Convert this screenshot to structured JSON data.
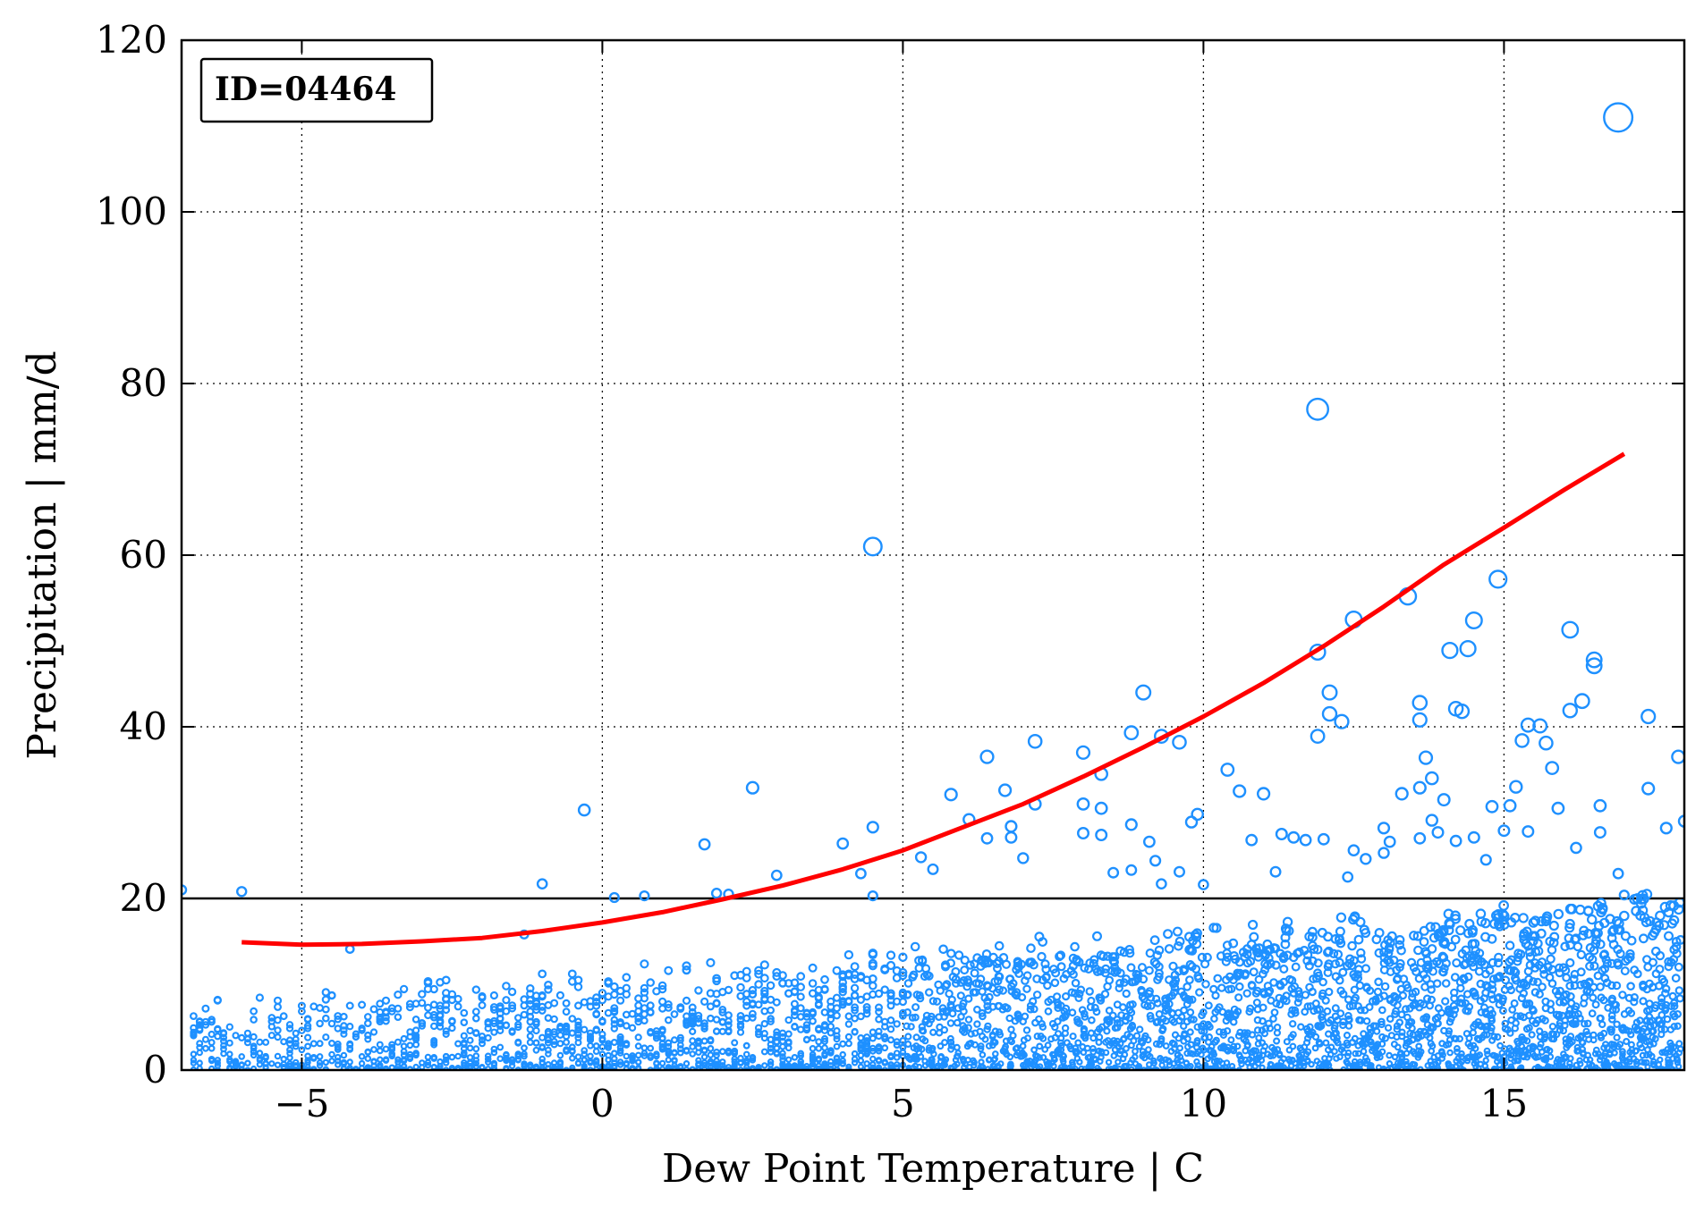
{
  "chart_data": {
    "type": "scatter",
    "xlabel": "Dew Point Temperature | C",
    "ylabel": "Precipitation | mm/d",
    "xlim": [
      -7,
      18
    ],
    "ylim": [
      0,
      120
    ],
    "xticks": [
      -5,
      0,
      5,
      10,
      15
    ],
    "xtick_labels": [
      "−5",
      "0",
      "5",
      "10",
      "15"
    ],
    "yticks": [
      0,
      20,
      40,
      60,
      80,
      100,
      120
    ],
    "ytick_labels": [
      "0",
      "20",
      "40",
      "60",
      "80",
      "100",
      "120"
    ],
    "grid": true,
    "annotation": "ID=04464",
    "threshold_line": 20,
    "colors": {
      "points": "#1e90ff",
      "fit": "#ff0000",
      "threshold": "#000000"
    },
    "fit_curve": {
      "name": "",
      "x": [
        -6,
        -5,
        -4,
        -3,
        -2,
        -1,
        0,
        1,
        2,
        3,
        4,
        5,
        6,
        7,
        8,
        9,
        10,
        11,
        12,
        13,
        14,
        15,
        16,
        17
      ],
      "y": [
        14.9,
        14.6,
        14.7,
        15.0,
        15.4,
        16.2,
        17.2,
        18.4,
        19.9,
        21.5,
        23.4,
        25.6,
        28.3,
        31.0,
        34.2,
        37.6,
        41.2,
        45.1,
        49.4,
        54.0,
        58.9,
        63.2,
        67.6,
        71.8
      ]
    },
    "series": [
      {
        "name": "",
        "points": [
          [
            -7.0,
            21.0
          ],
          [
            -6.0,
            20.8
          ],
          [
            -4.2,
            14.1
          ],
          [
            -1.3,
            15.8
          ],
          [
            -1.0,
            21.7
          ],
          [
            -0.3,
            30.3
          ],
          [
            0.2,
            20.1
          ],
          [
            0.7,
            20.3
          ],
          [
            1.7,
            26.3
          ],
          [
            1.9,
            20.6
          ],
          [
            2.1,
            20.5
          ],
          [
            2.5,
            32.9
          ],
          [
            2.9,
            22.7
          ],
          [
            4.0,
            26.4
          ],
          [
            4.3,
            22.9
          ],
          [
            4.5,
            61.0
          ],
          [
            4.5,
            28.3
          ],
          [
            4.5,
            20.3
          ],
          [
            5.3,
            24.8
          ],
          [
            5.5,
            23.4
          ],
          [
            5.8,
            32.1
          ],
          [
            6.1,
            29.2
          ],
          [
            6.4,
            36.5
          ],
          [
            6.4,
            27.0
          ],
          [
            6.7,
            32.6
          ],
          [
            6.8,
            27.1
          ],
          [
            6.8,
            28.4
          ],
          [
            7.0,
            24.7
          ],
          [
            7.2,
            38.3
          ],
          [
            7.2,
            31.0
          ],
          [
            8.0,
            37.0
          ],
          [
            8.0,
            31.0
          ],
          [
            8.0,
            27.6
          ],
          [
            8.3,
            34.5
          ],
          [
            8.3,
            30.5
          ],
          [
            8.3,
            27.4
          ],
          [
            8.5,
            23.0
          ],
          [
            8.8,
            39.3
          ],
          [
            8.8,
            28.6
          ],
          [
            8.8,
            23.3
          ],
          [
            9.0,
            44.0
          ],
          [
            9.1,
            26.6
          ],
          [
            9.2,
            24.4
          ],
          [
            9.3,
            38.9
          ],
          [
            9.3,
            21.7
          ],
          [
            9.6,
            38.2
          ],
          [
            9.6,
            23.1
          ],
          [
            9.8,
            28.9
          ],
          [
            9.9,
            29.8
          ],
          [
            10.0,
            21.6
          ],
          [
            10.4,
            35.0
          ],
          [
            10.6,
            32.5
          ],
          [
            10.8,
            26.8
          ],
          [
            11.0,
            32.2
          ],
          [
            11.2,
            23.1
          ],
          [
            11.3,
            27.5
          ],
          [
            11.5,
            27.1
          ],
          [
            11.7,
            26.8
          ],
          [
            11.9,
            77.0
          ],
          [
            11.9,
            48.7
          ],
          [
            11.9,
            38.9
          ],
          [
            12.0,
            26.9
          ],
          [
            12.1,
            44.0
          ],
          [
            12.1,
            41.5
          ],
          [
            12.3,
            40.6
          ],
          [
            12.4,
            22.5
          ],
          [
            12.5,
            52.5
          ],
          [
            12.5,
            25.6
          ],
          [
            12.7,
            24.6
          ],
          [
            13.0,
            28.2
          ],
          [
            13.0,
            25.3
          ],
          [
            13.1,
            26.6
          ],
          [
            13.3,
            32.2
          ],
          [
            13.4,
            55.2
          ],
          [
            13.6,
            42.8
          ],
          [
            13.6,
            40.8
          ],
          [
            13.6,
            32.9
          ],
          [
            13.6,
            27.0
          ],
          [
            13.7,
            36.4
          ],
          [
            13.8,
            34.0
          ],
          [
            13.8,
            29.1
          ],
          [
            13.9,
            27.7
          ],
          [
            14.0,
            31.5
          ],
          [
            14.1,
            48.9
          ],
          [
            14.2,
            42.1
          ],
          [
            14.2,
            26.7
          ],
          [
            14.3,
            41.8
          ],
          [
            14.4,
            49.1
          ],
          [
            14.5,
            52.4
          ],
          [
            14.5,
            27.1
          ],
          [
            14.7,
            24.5
          ],
          [
            14.8,
            30.7
          ],
          [
            14.9,
            57.2
          ],
          [
            15.0,
            27.9
          ],
          [
            15.1,
            30.8
          ],
          [
            15.2,
            33.0
          ],
          [
            15.3,
            38.4
          ],
          [
            15.4,
            40.2
          ],
          [
            15.4,
            27.8
          ],
          [
            15.6,
            40.1
          ],
          [
            15.7,
            38.1
          ],
          [
            15.8,
            35.2
          ],
          [
            15.9,
            30.5
          ],
          [
            16.1,
            51.3
          ],
          [
            16.1,
            41.9
          ],
          [
            16.2,
            25.9
          ],
          [
            16.3,
            43.0
          ],
          [
            16.5,
            47.8
          ],
          [
            16.5,
            47.1
          ],
          [
            16.6,
            30.8
          ],
          [
            16.6,
            27.7
          ],
          [
            16.9,
            111.0
          ],
          [
            16.9,
            22.9
          ],
          [
            17.0,
            20.4
          ],
          [
            17.4,
            41.2
          ],
          [
            17.4,
            32.8
          ],
          [
            17.7,
            28.2
          ],
          [
            17.9,
            36.5
          ],
          [
            18.0,
            29.0
          ]
        ]
      }
    ]
  }
}
